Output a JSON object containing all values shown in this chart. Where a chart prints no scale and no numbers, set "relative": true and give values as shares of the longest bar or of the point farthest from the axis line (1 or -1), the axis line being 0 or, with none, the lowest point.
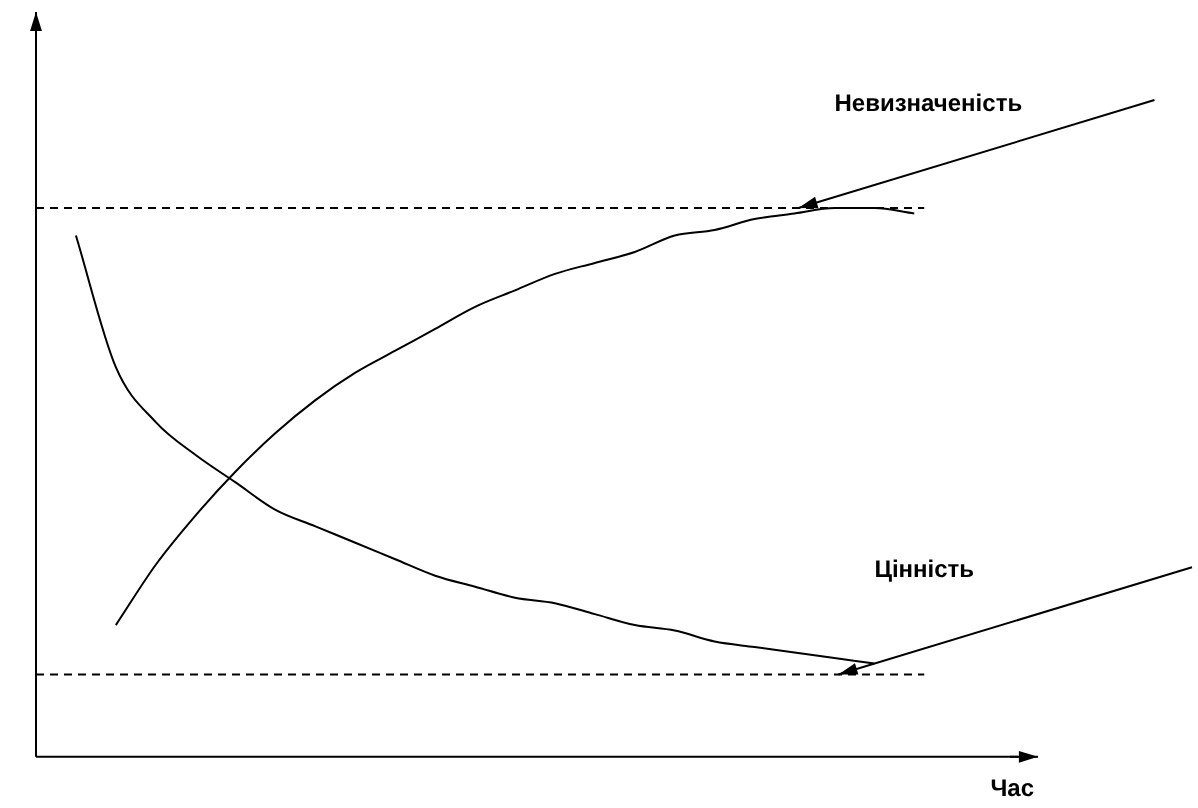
{
  "chart_data": {
    "type": "line",
    "relative": true,
    "xlabel": "Час",
    "categories": [
      null,
      null,
      null,
      null,
      null,
      null,
      null,
      null,
      null,
      null,
      null,
      null,
      null,
      null,
      null,
      null,
      null,
      null,
      null,
      null,
      null,
      null,
      null,
      null,
      null,
      null
    ],
    "series": [
      {
        "color": "#000000",
        "values": [
          null,
          0.95,
          0.71,
          0.61,
          0.55,
          0.5,
          0.45,
          0.42,
          0.39,
          0.36,
          0.33,
          0.31,
          0.29,
          0.28,
          0.26,
          0.24,
          0.23,
          0.21,
          0.2,
          0.19,
          0.18,
          0.17,
          null,
          null,
          null,
          null
        ]
      },
      {
        "color": "#000000",
        "values": [
          null,
          null,
          0.24,
          0.35,
          0.44,
          0.52,
          0.59,
          0.65,
          0.7,
          0.74,
          0.78,
          0.82,
          0.85,
          0.88,
          0.9,
          0.92,
          0.95,
          0.96,
          0.98,
          0.99,
          1,
          1,
          0.99,
          null,
          null,
          null
        ]
      }
    ],
    "ref_lines": [
      {
        "axis": "y",
        "value": 1,
        "color": "#000000",
        "line_style": "dashed"
      },
      {
        "axis": "y",
        "value": 0.15,
        "color": "#000000",
        "line_style": "dashed"
      }
    ],
    "annotations": [
      "Невизначеність",
      "Цінність"
    ],
    "grid": false,
    "legend": false,
    "marker": "none",
    "line_style": "solid"
  }
}
